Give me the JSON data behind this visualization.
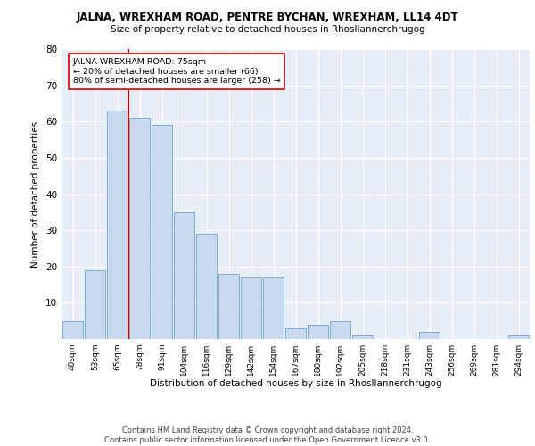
{
  "title": "JALNA, WREXHAM ROAD, PENTRE BYCHAN, WREXHAM, LL14 4DT",
  "subtitle": "Size of property relative to detached houses in Rhosllannerchrugog",
  "xlabel": "Distribution of detached houses by size in Rhosllannerchrugog",
  "ylabel": "Number of detached properties",
  "categories": [
    "40sqm",
    "53sqm",
    "65sqm",
    "78sqm",
    "91sqm",
    "104sqm",
    "116sqm",
    "129sqm",
    "142sqm",
    "154sqm",
    "167sqm",
    "180sqm",
    "192sqm",
    "205sqm",
    "218sqm",
    "231sqm",
    "243sqm",
    "256sqm",
    "269sqm",
    "281sqm",
    "294sqm"
  ],
  "values": [
    5,
    19,
    63,
    61,
    59,
    35,
    29,
    18,
    17,
    17,
    3,
    4,
    5,
    1,
    0,
    0,
    2,
    0,
    0,
    0,
    1
  ],
  "bar_color": "#c9d9f0",
  "bar_edge_color": "#7bafd4",
  "vline_x_index": 2,
  "vline_color": "#cc0000",
  "annotation_text": "JALNA WREXHAM ROAD: 75sqm\n← 20% of detached houses are smaller (66)\n80% of semi-detached houses are larger (258) →",
  "annotation_box_color": "#ffffff",
  "annotation_box_edge": "#cc0000",
  "ylim": [
    0,
    80
  ],
  "yticks": [
    0,
    10,
    20,
    30,
    40,
    50,
    60,
    70,
    80
  ],
  "footer": "Contains HM Land Registry data © Crown copyright and database right 2024.\nContains public sector information licensed under the Open Government Licence v3.0.",
  "bg_color": "#e8eef8",
  "fig_bg_color": "#ffffff",
  "grid_color": "#ffffff"
}
